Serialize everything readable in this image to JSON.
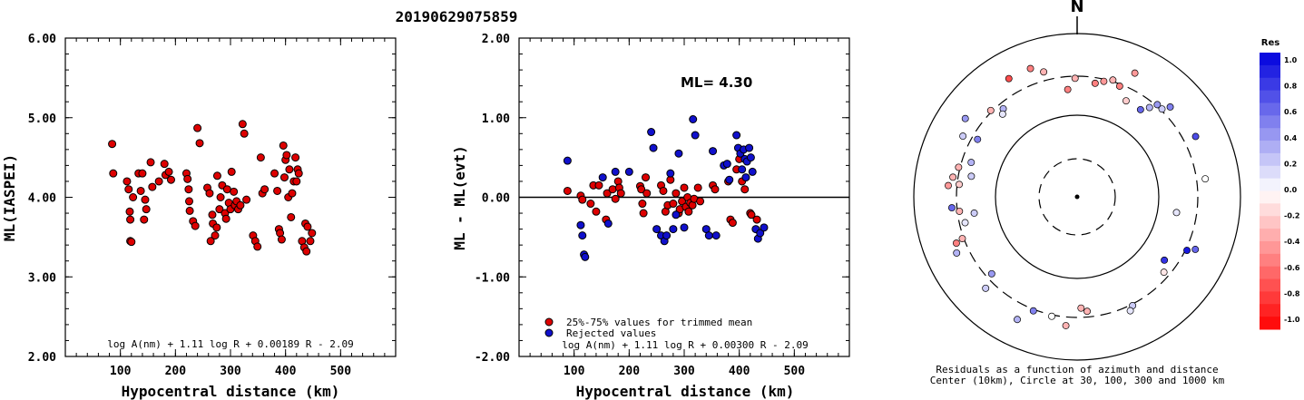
{
  "title": "20190629075859",
  "colors": {
    "red": "#dd0000",
    "blue": "#1010cc",
    "res_pos": "#0000dd",
    "res_neg": "#ff0000"
  },
  "chart_data": [
    {
      "type": "scatter",
      "name": "left",
      "xlabel": "Hypocentral distance (km)",
      "ylabel": "ML(IASPEI)",
      "xlim": [
        0,
        600
      ],
      "ylim": [
        2,
        6
      ],
      "xticks": [
        "100",
        "200",
        "300",
        "400",
        "500"
      ],
      "yticks": [
        "2.00",
        "3.00",
        "4.00",
        "5.00",
        "6.00"
      ],
      "formula": "log A(nm) + 1.11 log R + 0.00189 R - 2.09",
      "points": [
        [
          85,
          4.67
        ],
        [
          87,
          4.3
        ],
        [
          112,
          4.2
        ],
        [
          115,
          4.1
        ],
        [
          117,
          3.82
        ],
        [
          118,
          3.72
        ],
        [
          118,
          3.45
        ],
        [
          120,
          3.44
        ],
        [
          123,
          4.0
        ],
        [
          133,
          4.3
        ],
        [
          137,
          4.08
        ],
        [
          140,
          4.3
        ],
        [
          143,
          3.72
        ],
        [
          145,
          3.97
        ],
        [
          147,
          3.85
        ],
        [
          155,
          4.44
        ],
        [
          158,
          4.13
        ],
        [
          170,
          4.2
        ],
        [
          180,
          4.42
        ],
        [
          182,
          4.28
        ],
        [
          188,
          4.32
        ],
        [
          192,
          4.22
        ],
        [
          220,
          4.3
        ],
        [
          222,
          4.23
        ],
        [
          224,
          4.1
        ],
        [
          225,
          3.95
        ],
        [
          226,
          3.83
        ],
        [
          232,
          3.7
        ],
        [
          236,
          3.64
        ],
        [
          240,
          4.87
        ],
        [
          244,
          4.68
        ],
        [
          258,
          4.12
        ],
        [
          262,
          4.05
        ],
        [
          264,
          3.45
        ],
        [
          267,
          3.78
        ],
        [
          268,
          3.67
        ],
        [
          272,
          3.52
        ],
        [
          275,
          3.62
        ],
        [
          276,
          4.27
        ],
        [
          280,
          3.85
        ],
        [
          282,
          4.0
        ],
        [
          285,
          4.15
        ],
        [
          290,
          3.8
        ],
        [
          292,
          3.73
        ],
        [
          294,
          4.1
        ],
        [
          297,
          3.93
        ],
        [
          300,
          3.85
        ],
        [
          302,
          4.32
        ],
        [
          306,
          4.07
        ],
        [
          308,
          3.9
        ],
        [
          311,
          3.95
        ],
        [
          314,
          3.85
        ],
        [
          318,
          3.9
        ],
        [
          322,
          4.92
        ],
        [
          325,
          4.8
        ],
        [
          329,
          3.97
        ],
        [
          341,
          3.52
        ],
        [
          345,
          3.45
        ],
        [
          349,
          3.38
        ],
        [
          355,
          4.5
        ],
        [
          358,
          4.05
        ],
        [
          362,
          4.1
        ],
        [
          380,
          4.3
        ],
        [
          385,
          4.08
        ],
        [
          388,
          3.6
        ],
        [
          390,
          3.55
        ],
        [
          393,
          3.47
        ],
        [
          396,
          4.65
        ],
        [
          398,
          4.25
        ],
        [
          400,
          4.47
        ],
        [
          402,
          4.53
        ],
        [
          405,
          4.0
        ],
        [
          407,
          4.35
        ],
        [
          410,
          3.75
        ],
        [
          412,
          4.05
        ],
        [
          415,
          4.2
        ],
        [
          418,
          4.5
        ],
        [
          420,
          4.2
        ],
        [
          422,
          4.35
        ],
        [
          424,
          4.3
        ],
        [
          430,
          3.45
        ],
        [
          434,
          3.37
        ],
        [
          436,
          3.67
        ],
        [
          438,
          3.32
        ],
        [
          440,
          3.63
        ],
        [
          445,
          3.45
        ],
        [
          448,
          3.55
        ]
      ]
    },
    {
      "type": "scatter",
      "name": "middle",
      "xlabel": "Hypocentral distance (km)",
      "ylabel": "ML - ML(evt)",
      "xlim": [
        0,
        600
      ],
      "ylim": [
        -2,
        2
      ],
      "xticks": [
        "100",
        "200",
        "300",
        "400",
        "500"
      ],
      "yticks": [
        "-2.00",
        "-1.00",
        "0.00",
        "1.00",
        "2.00"
      ],
      "annotation": "ML= 4.30",
      "legend": [
        "25%-75% values for trimmed mean",
        "Rejected values"
      ],
      "formula": "log A(nm) + 1.11 log R + 0.00300 R - 2.09",
      "red_points": [
        [
          88,
          0.08
        ],
        [
          112,
          0.02
        ],
        [
          115,
          -0.03
        ],
        [
          130,
          -0.08
        ],
        [
          135,
          0.15
        ],
        [
          140,
          -0.18
        ],
        [
          145,
          0.15
        ],
        [
          158,
          -0.28
        ],
        [
          160,
          0.05
        ],
        [
          170,
          0.1
        ],
        [
          175,
          -0.02
        ],
        [
          180,
          0.2
        ],
        [
          182,
          0.12
        ],
        [
          185,
          0.05
        ],
        [
          220,
          0.14
        ],
        [
          222,
          0.1
        ],
        [
          224,
          -0.08
        ],
        [
          226,
          -0.2
        ],
        [
          230,
          0.25
        ],
        [
          232,
          0.05
        ],
        [
          258,
          0.15
        ],
        [
          262,
          0.08
        ],
        [
          266,
          -0.18
        ],
        [
          270,
          -0.1
        ],
        [
          275,
          0.22
        ],
        [
          280,
          -0.08
        ],
        [
          285,
          0.05
        ],
        [
          290,
          -0.2
        ],
        [
          292,
          -0.15
        ],
        [
          296,
          -0.05
        ],
        [
          300,
          0.12
        ],
        [
          303,
          -0.12
        ],
        [
          306,
          0.0
        ],
        [
          308,
          -0.18
        ],
        [
          311,
          -0.07
        ],
        [
          315,
          -0.1
        ],
        [
          318,
          -0.02
        ],
        [
          325,
          0.12
        ],
        [
          329,
          -0.05
        ],
        [
          352,
          0.15
        ],
        [
          356,
          0.1
        ],
        [
          380,
          0.2
        ],
        [
          384,
          -0.28
        ],
        [
          388,
          -0.32
        ],
        [
          395,
          0.35
        ],
        [
          400,
          0.48
        ],
        [
          405,
          0.2
        ],
        [
          410,
          0.1
        ],
        [
          420,
          -0.2
        ],
        [
          422,
          -0.22
        ],
        [
          432,
          -0.28
        ]
      ],
      "blue_points": [
        [
          88,
          0.46
        ],
        [
          112,
          -0.35
        ],
        [
          115,
          -0.48
        ],
        [
          118,
          -0.72
        ],
        [
          120,
          -0.75
        ],
        [
          152,
          0.25
        ],
        [
          162,
          -0.33
        ],
        [
          175,
          0.32
        ],
        [
          200,
          0.32
        ],
        [
          240,
          0.82
        ],
        [
          244,
          0.62
        ],
        [
          250,
          -0.4
        ],
        [
          258,
          -0.48
        ],
        [
          264,
          -0.55
        ],
        [
          268,
          -0.48
        ],
        [
          275,
          0.3
        ],
        [
          280,
          -0.4
        ],
        [
          285,
          -0.22
        ],
        [
          290,
          0.55
        ],
        [
          300,
          -0.38
        ],
        [
          316,
          0.98
        ],
        [
          320,
          0.78
        ],
        [
          340,
          -0.4
        ],
        [
          345,
          -0.48
        ],
        [
          352,
          0.58
        ],
        [
          358,
          -0.48
        ],
        [
          372,
          0.4
        ],
        [
          378,
          0.42
        ],
        [
          382,
          0.22
        ],
        [
          395,
          0.78
        ],
        [
          398,
          0.62
        ],
        [
          402,
          0.55
        ],
        [
          405,
          0.35
        ],
        [
          408,
          0.6
        ],
        [
          410,
          0.48
        ],
        [
          412,
          0.25
        ],
        [
          414,
          0.45
        ],
        [
          418,
          0.62
        ],
        [
          421,
          0.5
        ],
        [
          424,
          0.32
        ],
        [
          430,
          -0.4
        ],
        [
          434,
          -0.52
        ],
        [
          438,
          -0.45
        ],
        [
          445,
          -0.38
        ]
      ]
    },
    {
      "type": "scatter",
      "name": "polar",
      "north_label": "N",
      "colorbar_title": "Res",
      "colorbar_ticks": [
        "1.0",
        "0.8",
        "0.6",
        "0.4",
        "0.2",
        "0.0",
        "-0.2",
        "-0.4",
        "-0.6",
        "-0.8",
        "-1.0"
      ],
      "caption_line1": "Residuals as a function of azimuth and distance",
      "caption_line2": "Center (10km), Circle at 30, 100, 300 and 1000 km",
      "points": [
        [
          -1,
          0.33
        ],
        [
          9,
          0.32
        ],
        [
          13,
          0.33
        ],
        [
          17,
          0.34
        ],
        [
          21,
          0.33
        ],
        [
          27,
          0.3
        ],
        [
          39,
          0.32
        ],
        [
          41,
          0.34
        ],
        [
          44,
          0.34
        ],
        [
          46,
          0.36
        ],
        [
          25,
          0.38
        ],
        [
          -15,
          0.36
        ],
        [
          -20,
          0.38
        ],
        [
          -40,
          0.32
        ],
        [
          -42,
          0.31
        ],
        [
          -60,
          0.32
        ],
        [
          -62,
          0.36
        ],
        [
          -72,
          0.31
        ],
        [
          -76,
          0.34
        ],
        [
          -79,
          0.3
        ],
        [
          -81,
          0.35
        ],
        [
          -84,
          0.33
        ],
        [
          -85,
          0.36
        ],
        [
          -97,
          0.33
        ],
        [
          -103,
          0.32
        ],
        [
          -111,
          0.36
        ],
        [
          -110,
          0.34
        ],
        [
          -132,
          0.32
        ],
        [
          -135,
          0.36
        ],
        [
          -154,
          0.38
        ],
        [
          -159,
          0.34
        ],
        [
          -168,
          0.34
        ],
        [
          -175,
          0.36
        ],
        [
          153,
          0.34
        ],
        [
          155,
          0.35
        ],
        [
          175,
          0.32
        ],
        [
          178,
          0.31
        ],
        [
          -5,
          0.3
        ],
        [
          63,
          0.37
        ],
        [
          36,
          0.3
        ],
        [
          114,
          0.36
        ],
        [
          116,
          0.34
        ],
        [
          82,
          0.36
        ],
        [
          99,
          0.28
        ],
        [
          131,
          0.32
        ],
        [
          126,
          0.3
        ],
        [
          -99,
          0.29
        ],
        [
          -55,
          0.38
        ],
        [
          -45,
          0.34
        ],
        [
          -115,
          0.37
        ],
        [
          -30,
          0.38
        ],
        [
          -95,
          0.35
        ]
      ],
      "residuals": [
        -0.3,
        -0.5,
        -0.4,
        -0.3,
        -0.5,
        -0.2,
        0.3,
        0.4,
        0.2,
        0.5,
        -0.4,
        -0.3,
        -0.5,
        0.3,
        0.1,
        0.5,
        0.2,
        0.3,
        -0.3,
        0.2,
        -0.3,
        -0.2,
        -0.4,
        -0.3,
        0.1,
        -0.5,
        -0.3,
        0.4,
        0.2,
        0.3,
        0.5,
        0.0,
        -0.3,
        0.2,
        0.1,
        -0.3,
        -0.3,
        -0.5,
        0.7,
        0.6,
        0.6,
        0.9,
        0.0,
        0.1,
        -0.1,
        0.8,
        0.2,
        0.4,
        -0.3,
        0.3,
        -0.7,
        0.6
      ]
    }
  ]
}
